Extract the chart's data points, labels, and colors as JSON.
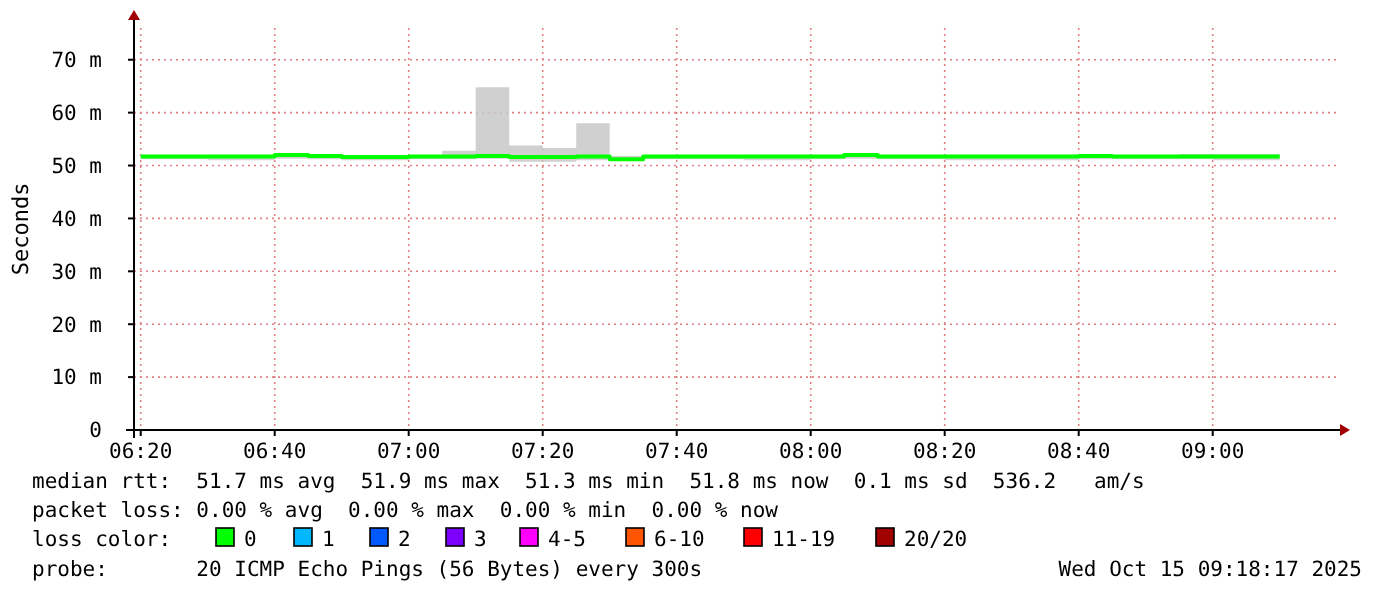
{
  "chart_data": {
    "type": "step",
    "ylabel": "Seconds",
    "legend_title": "loss color:",
    "legend": "bottom",
    "grid": true,
    "x": [
      "2025-10-15T06:20",
      "2025-10-15T06:25",
      "2025-10-15T06:30",
      "2025-10-15T06:35",
      "2025-10-15T06:40",
      "2025-10-15T06:45",
      "2025-10-15T06:50",
      "2025-10-15T06:55",
      "2025-10-15T07:00",
      "2025-10-15T07:05",
      "2025-10-15T07:10",
      "2025-10-15T07:15",
      "2025-10-15T07:20",
      "2025-10-15T07:25",
      "2025-10-15T07:30",
      "2025-10-15T07:35",
      "2025-10-15T07:40",
      "2025-10-15T07:45",
      "2025-10-15T07:50",
      "2025-10-15T07:55",
      "2025-10-15T08:00",
      "2025-10-15T08:05",
      "2025-10-15T08:10",
      "2025-10-15T08:15",
      "2025-10-15T08:20",
      "2025-10-15T08:25",
      "2025-10-15T08:30",
      "2025-10-15T08:35",
      "2025-10-15T08:40",
      "2025-10-15T08:45",
      "2025-10-15T08:50",
      "2025-10-15T08:55",
      "2025-10-15T09:00",
      "2025-10-15T09:05",
      "2025-10-15T09:10"
    ],
    "series": [
      {
        "name": "0",
        "color": "#00ff00",
        "values": [
          51.7,
          51.7,
          51.7,
          51.7,
          52.0,
          51.8,
          51.6,
          51.6,
          51.7,
          51.7,
          51.8,
          51.6,
          51.6,
          51.7,
          51.2,
          51.7,
          51.7,
          51.7,
          51.7,
          51.7,
          51.7,
          52.0,
          51.7,
          51.7,
          51.7,
          51.7,
          51.7,
          51.7,
          51.8,
          51.7,
          51.7,
          51.7,
          51.7,
          51.7,
          51.7
        ],
        "lower": [
          51.2,
          51.2,
          51.0,
          51.0,
          51.3,
          51.2,
          51.0,
          51.0,
          51.2,
          51.2,
          51.3,
          50.7,
          50.7,
          51.0,
          51.0,
          51.2,
          51.2,
          51.2,
          51.0,
          51.0,
          51.2,
          51.3,
          51.2,
          51.2,
          51.0,
          51.0,
          51.0,
          51.0,
          51.2,
          51.2,
          51.2,
          51.2,
          51.0,
          51.0,
          51.0
        ],
        "upper": [
          52.0,
          52.0,
          52.0,
          52.0,
          52.3,
          52.2,
          52.0,
          52.0,
          52.0,
          52.8,
          64.8,
          53.8,
          53.3,
          58.0,
          51.8,
          52.0,
          52.0,
          52.0,
          52.0,
          52.0,
          52.0,
          52.3,
          52.0,
          52.0,
          52.0,
          52.0,
          52.0,
          52.0,
          52.0,
          52.0,
          52.0,
          52.2,
          52.2,
          52.2,
          52.2
        ]
      },
      {
        "name": "1",
        "color": "#00b8ff",
        "values": [
          null,
          null,
          null,
          null,
          null,
          null,
          null,
          null,
          null,
          null,
          null,
          null,
          null,
          null,
          null,
          null,
          null,
          null,
          null,
          null,
          null,
          null,
          null,
          null,
          null,
          null,
          null,
          null,
          null,
          null,
          null,
          null,
          null,
          null,
          null
        ]
      },
      {
        "name": "2",
        "color": "#0059ff",
        "values": [
          null,
          null,
          null,
          null,
          null,
          null,
          null,
          null,
          null,
          null,
          null,
          null,
          null,
          null,
          null,
          null,
          null,
          null,
          null,
          null,
          null,
          null,
          null,
          null,
          null,
          null,
          null,
          null,
          null,
          null,
          null,
          null,
          null,
          null,
          null
        ]
      },
      {
        "name": "3",
        "color": "#7e00ff",
        "values": [
          null,
          null,
          null,
          null,
          null,
          null,
          null,
          null,
          null,
          null,
          null,
          null,
          null,
          null,
          null,
          null,
          null,
          null,
          null,
          null,
          null,
          null,
          null,
          null,
          null,
          null,
          null,
          null,
          null,
          null,
          null,
          null,
          null,
          null,
          null
        ]
      },
      {
        "name": "4-5",
        "color": "#ff00ff",
        "values": [
          null,
          null,
          null,
          null,
          null,
          null,
          null,
          null,
          null,
          null,
          null,
          null,
          null,
          null,
          null,
          null,
          null,
          null,
          null,
          null,
          null,
          null,
          null,
          null,
          null,
          null,
          null,
          null,
          null,
          null,
          null,
          null,
          null,
          null,
          null
        ]
      },
      {
        "name": "6-10",
        "color": "#ff5500",
        "values": [
          null,
          null,
          null,
          null,
          null,
          null,
          null,
          null,
          null,
          null,
          null,
          null,
          null,
          null,
          null,
          null,
          null,
          null,
          null,
          null,
          null,
          null,
          null,
          null,
          null,
          null,
          null,
          null,
          null,
          null,
          null,
          null,
          null,
          null,
          null
        ]
      },
      {
        "name": "11-19",
        "color": "#ff0000",
        "values": [
          null,
          null,
          null,
          null,
          null,
          null,
          null,
          null,
          null,
          null,
          null,
          null,
          null,
          null,
          null,
          null,
          null,
          null,
          null,
          null,
          null,
          null,
          null,
          null,
          null,
          null,
          null,
          null,
          null,
          null,
          null,
          null,
          null,
          null,
          null
        ]
      },
      {
        "name": "20/20",
        "color": "#a10000",
        "values": [
          null,
          null,
          null,
          null,
          null,
          null,
          null,
          null,
          null,
          null,
          null,
          null,
          null,
          null,
          null,
          null,
          null,
          null,
          null,
          null,
          null,
          null,
          null,
          null,
          null,
          null,
          null,
          null,
          null,
          null,
          null,
          null,
          null,
          null,
          null
        ]
      }
    ],
    "xlim": [
      "2025-10-15T06:19",
      "2025-10-15T09:19"
    ],
    "xticks": [
      {
        "value": "2025-10-15T06:20",
        "label": "06:20"
      },
      {
        "value": "2025-10-15T06:40",
        "label": "06:40"
      },
      {
        "value": "2025-10-15T07:00",
        "label": "07:00"
      },
      {
        "value": "2025-10-15T07:20",
        "label": "07:20"
      },
      {
        "value": "2025-10-15T07:40",
        "label": "07:40"
      },
      {
        "value": "2025-10-15T08:00",
        "label": "08:00"
      },
      {
        "value": "2025-10-15T08:20",
        "label": "08:20"
      },
      {
        "value": "2025-10-15T08:40",
        "label": "08:40"
      },
      {
        "value": "2025-10-15T09:00",
        "label": "09:00"
      }
    ],
    "ylim": [
      0,
      76
    ],
    "yticks": [
      0,
      {
        "value": 10,
        "label": "10 m"
      },
      {
        "value": 20,
        "label": "20 m"
      },
      {
        "value": 30,
        "label": "30 m"
      },
      {
        "value": 40,
        "label": "40 m"
      },
      {
        "value": 50,
        "label": "50 m"
      },
      {
        "value": 60,
        "label": "60 m"
      },
      {
        "value": 70,
        "label": "70 m"
      }
    ],
    "annotations": [
      "median rtt:  51.7 ms avg  51.9 ms max  51.3 ms min  51.8 ms now  0.1 ms sd  536.2   am/s",
      "packet loss: 0.00 % avg  0.00 % max  0.00 % min  0.00 % now",
      "probe:       20 ICMP Echo Pings (56 Bytes) every 300s",
      "Wed Oct 15 09:18:17 2025"
    ]
  }
}
